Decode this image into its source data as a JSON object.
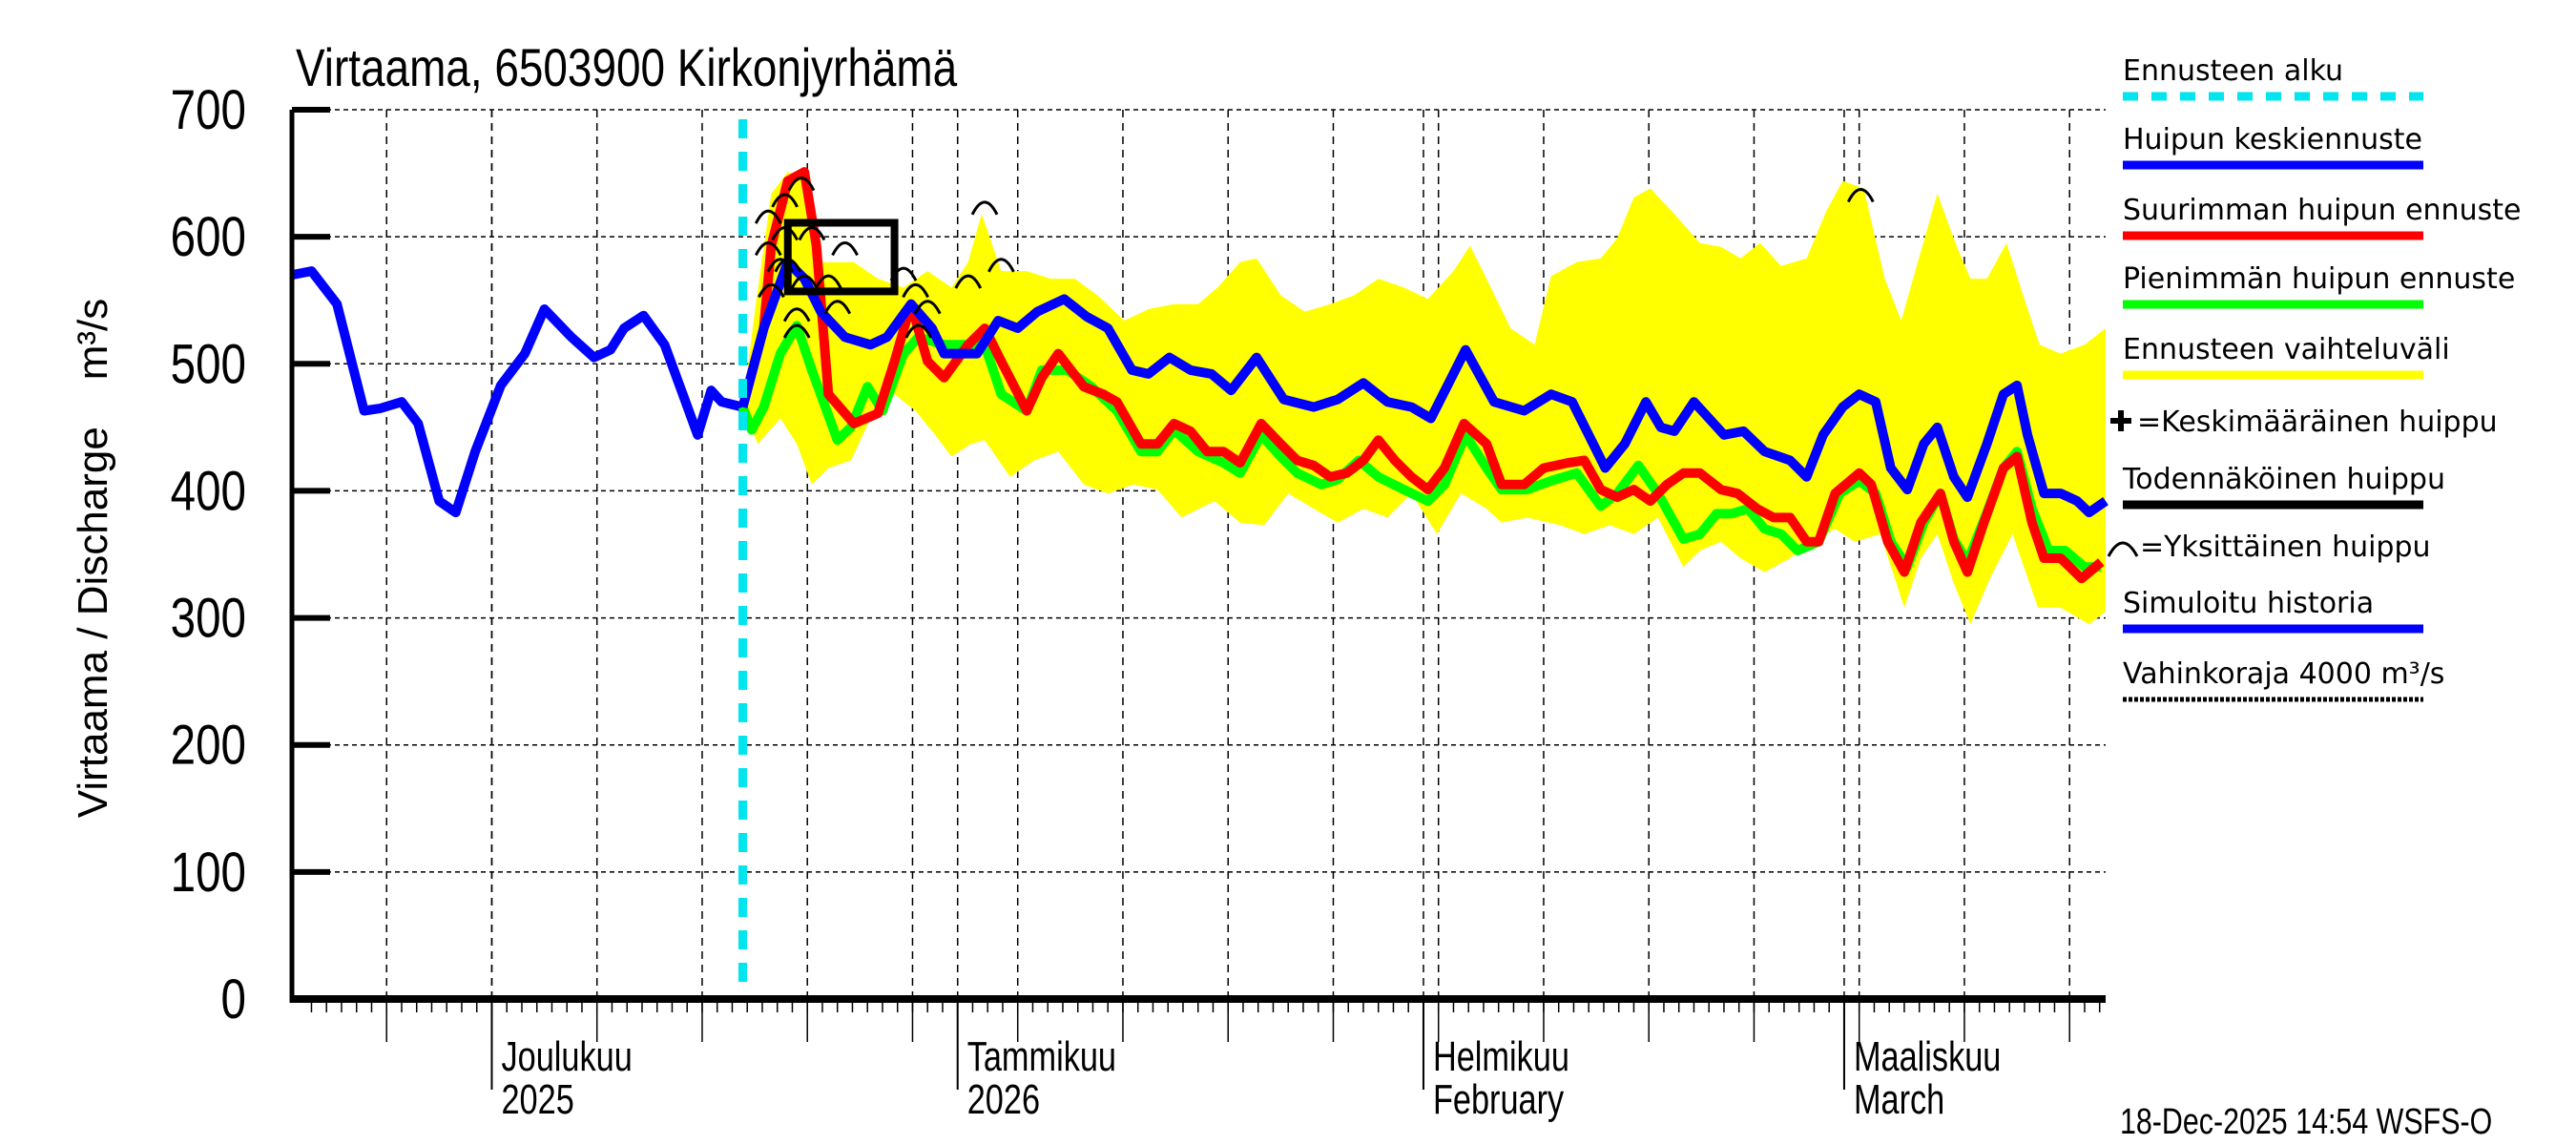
{
  "chart_data": {
    "type": "line",
    "title": "Virtaama, 6503900 Kirkonjyrhämä",
    "ylabel": "Virtaama / Discharge    m³/s",
    "ylim": [
      0,
      700
    ],
    "yticks": [
      0,
      100,
      200,
      300,
      400,
      500,
      600,
      700
    ],
    "x_unit": "days since 2025-11-18",
    "xlim": [
      0,
      120.7
    ],
    "month_starts": [
      13.3,
      44.3,
      75.3,
      103.3
    ],
    "month_labels": [
      {
        "day": 13.3,
        "line1": "Joulukuu",
        "line2": "2025"
      },
      {
        "day": 44.3,
        "line1": "Tammikuu",
        "line2": "2026"
      },
      {
        "day": 75.3,
        "line1": "Helmikuu",
        "line2": "February"
      },
      {
        "day": 103.3,
        "line1": "Maaliskuu",
        "line2": "March"
      }
    ],
    "forecast_start_day": 30,
    "timestamp": "18-Dec-2025 14:54 WSFS-O",
    "colors": {
      "history": "#0000ff",
      "mean": "#0000ff",
      "max": "#ff0000",
      "min": "#00ff00",
      "band": "#ffff00",
      "forecast_start": "#00e5ee",
      "probable": "#000000"
    },
    "history": [
      [
        0,
        570
      ],
      [
        1.3,
        573
      ],
      [
        3,
        547
      ],
      [
        4.8,
        463
      ],
      [
        5.9,
        465
      ],
      [
        7.3,
        470
      ],
      [
        8.4,
        453
      ],
      [
        9.8,
        392
      ],
      [
        10.9,
        383
      ],
      [
        12.2,
        431
      ],
      [
        13.9,
        483
      ],
      [
        15.5,
        508
      ],
      [
        16.8,
        543
      ],
      [
        18.6,
        521
      ],
      [
        20.1,
        505
      ],
      [
        21.2,
        511
      ],
      [
        22.1,
        528
      ],
      [
        23.4,
        538
      ],
      [
        24.8,
        515
      ],
      [
        26.2,
        470
      ],
      [
        27,
        444
      ],
      [
        27.9,
        479
      ],
      [
        28.6,
        470
      ],
      [
        30,
        466
      ]
    ],
    "mean_forecast": [
      [
        30,
        466
      ],
      [
        31.4,
        528
      ],
      [
        33,
        580
      ],
      [
        34.1,
        567
      ],
      [
        35.2,
        541
      ],
      [
        36.8,
        521
      ],
      [
        38.5,
        515
      ],
      [
        39.6,
        521
      ],
      [
        41.2,
        547
      ],
      [
        42.6,
        528
      ],
      [
        43.4,
        508
      ],
      [
        45.6,
        508
      ],
      [
        47,
        534
      ],
      [
        48.3,
        528
      ],
      [
        49.6,
        541
      ],
      [
        51.4,
        551
      ],
      [
        52.9,
        537
      ],
      [
        54.3,
        528
      ],
      [
        55.9,
        495
      ],
      [
        57,
        492
      ],
      [
        58.4,
        505
      ],
      [
        59.8,
        495
      ],
      [
        61.2,
        492
      ],
      [
        62.5,
        479
      ],
      [
        64.2,
        505
      ],
      [
        66,
        472
      ],
      [
        68,
        466
      ],
      [
        69.6,
        472
      ],
      [
        71.3,
        485
      ],
      [
        72.9,
        470
      ],
      [
        74.5,
        466
      ],
      [
        75.8,
        457
      ],
      [
        78.1,
        511
      ],
      [
        80,
        470
      ],
      [
        82,
        463
      ],
      [
        83.8,
        476
      ],
      [
        85.2,
        470
      ],
      [
        86.3,
        444
      ],
      [
        87.4,
        418
      ],
      [
        88.7,
        437
      ],
      [
        90.1,
        470
      ],
      [
        91.1,
        450
      ],
      [
        92,
        447
      ],
      [
        93.3,
        470
      ],
      [
        95.3,
        444
      ],
      [
        96.6,
        447
      ],
      [
        98,
        431
      ],
      [
        99.7,
        424
      ],
      [
        100.8,
        411
      ],
      [
        101.9,
        444
      ],
      [
        103.2,
        466
      ],
      [
        104.3,
        476
      ],
      [
        105.4,
        470
      ],
      [
        106.4,
        418
      ],
      [
        107.5,
        401
      ],
      [
        108.6,
        437
      ],
      [
        109.5,
        450
      ],
      [
        110.6,
        411
      ],
      [
        111.5,
        395
      ],
      [
        112.8,
        437
      ],
      [
        113.9,
        476
      ],
      [
        114.8,
        483
      ],
      [
        115.5,
        444
      ],
      [
        116.6,
        398
      ],
      [
        117.7,
        398
      ],
      [
        118.8,
        392
      ],
      [
        119.6,
        383
      ],
      [
        120.7,
        392
      ]
    ],
    "max_forecast": [
      [
        30,
        466
      ],
      [
        31.4,
        528
      ],
      [
        31.9,
        593
      ],
      [
        33,
        644
      ],
      [
        34.1,
        651
      ],
      [
        34.9,
        593
      ],
      [
        35.7,
        476
      ],
      [
        37.4,
        453
      ],
      [
        39,
        461
      ],
      [
        40.1,
        502
      ],
      [
        41.2,
        547
      ],
      [
        42.3,
        502
      ],
      [
        43.4,
        489
      ],
      [
        45,
        515
      ],
      [
        46.1,
        528
      ],
      [
        47.2,
        502
      ],
      [
        48.9,
        463
      ],
      [
        49.9,
        489
      ],
      [
        51,
        508
      ],
      [
        52.7,
        482
      ],
      [
        54,
        476
      ],
      [
        54.9,
        470
      ],
      [
        56.5,
        437
      ],
      [
        57.6,
        437
      ],
      [
        58.7,
        453
      ],
      [
        59.8,
        447
      ],
      [
        60.9,
        431
      ],
      [
        62,
        431
      ],
      [
        63.1,
        422
      ],
      [
        64.5,
        453
      ],
      [
        65.8,
        437
      ],
      [
        66.9,
        424
      ],
      [
        68,
        420
      ],
      [
        69.1,
        411
      ],
      [
        70.2,
        414
      ],
      [
        71.3,
        424
      ],
      [
        72.3,
        440
      ],
      [
        73.4,
        424
      ],
      [
        74.5,
        411
      ],
      [
        75.6,
        401
      ],
      [
        76.7,
        418
      ],
      [
        78,
        453
      ],
      [
        79.5,
        437
      ],
      [
        80.5,
        405
      ],
      [
        82,
        405
      ],
      [
        83.3,
        418
      ],
      [
        84.9,
        422
      ],
      [
        86,
        424
      ],
      [
        87.1,
        401
      ],
      [
        88.2,
        395
      ],
      [
        89.3,
        401
      ],
      [
        90.4,
        392
      ],
      [
        91.5,
        405
      ],
      [
        92.6,
        414
      ],
      [
        93.7,
        414
      ],
      [
        95.1,
        401
      ],
      [
        96.2,
        398
      ],
      [
        97.5,
        386
      ],
      [
        98.6,
        379
      ],
      [
        99.7,
        379
      ],
      [
        100.8,
        360
      ],
      [
        101.6,
        360
      ],
      [
        102.7,
        398
      ],
      [
        104.3,
        414
      ],
      [
        105.1,
        405
      ],
      [
        106.2,
        360
      ],
      [
        107.3,
        336
      ],
      [
        108.4,
        375
      ],
      [
        109.7,
        398
      ],
      [
        110.6,
        360
      ],
      [
        111.5,
        336
      ],
      [
        112.6,
        375
      ],
      [
        113.9,
        418
      ],
      [
        114.8,
        427
      ],
      [
        115.8,
        375
      ],
      [
        116.6,
        347
      ],
      [
        117.7,
        347
      ],
      [
        119.1,
        331
      ],
      [
        120.4,
        344
      ]
    ],
    "min_forecast": [
      [
        30,
        466
      ],
      [
        30.6,
        448
      ],
      [
        31.4,
        466
      ],
      [
        32.5,
        508
      ],
      [
        33.6,
        530
      ],
      [
        34.6,
        495
      ],
      [
        36.3,
        440
      ],
      [
        37.2,
        450
      ],
      [
        38.3,
        482
      ],
      [
        39.3,
        463
      ],
      [
        40.7,
        508
      ],
      [
        41.7,
        521
      ],
      [
        43.4,
        515
      ],
      [
        46.1,
        515
      ],
      [
        47.2,
        476
      ],
      [
        48.9,
        463
      ],
      [
        49.9,
        495
      ],
      [
        51.6,
        495
      ],
      [
        53.2,
        482
      ],
      [
        54.9,
        463
      ],
      [
        56.5,
        431
      ],
      [
        57.6,
        431
      ],
      [
        58.7,
        448
      ],
      [
        60.3,
        431
      ],
      [
        62,
        422
      ],
      [
        63.1,
        414
      ],
      [
        64.5,
        444
      ],
      [
        65.8,
        427
      ],
      [
        66.9,
        414
      ],
      [
        68.5,
        405
      ],
      [
        69.6,
        409
      ],
      [
        71,
        424
      ],
      [
        72.3,
        411
      ],
      [
        74,
        401
      ],
      [
        75.6,
        392
      ],
      [
        76.7,
        405
      ],
      [
        78.1,
        444
      ],
      [
        79.5,
        418
      ],
      [
        80.5,
        401
      ],
      [
        82.2,
        401
      ],
      [
        83.8,
        408
      ],
      [
        85.5,
        414
      ],
      [
        87.1,
        388
      ],
      [
        88.2,
        398
      ],
      [
        89.6,
        420
      ],
      [
        90.9,
        398
      ],
      [
        92.6,
        362
      ],
      [
        93.7,
        366
      ],
      [
        94.8,
        382
      ],
      [
        95.8,
        382
      ],
      [
        96.9,
        386
      ],
      [
        98,
        370
      ],
      [
        99.1,
        366
      ],
      [
        100.2,
        353
      ],
      [
        101.6,
        360
      ],
      [
        103,
        398
      ],
      [
        104.3,
        408
      ],
      [
        105.4,
        398
      ],
      [
        106.4,
        360
      ],
      [
        107.5,
        340
      ],
      [
        108.6,
        375
      ],
      [
        109.7,
        398
      ],
      [
        110.6,
        362
      ],
      [
        111.5,
        344
      ],
      [
        112.8,
        383
      ],
      [
        113.9,
        418
      ],
      [
        114.8,
        431
      ],
      [
        115.8,
        386
      ],
      [
        116.9,
        353
      ],
      [
        118,
        353
      ],
      [
        119.3,
        340
      ],
      [
        120.4,
        340
      ]
    ],
    "band_upper": [
      [
        30,
        466
      ],
      [
        30.8,
        541
      ],
      [
        31.9,
        634
      ],
      [
        33,
        651
      ],
      [
        34.3,
        646
      ],
      [
        35.2,
        580
      ],
      [
        37.4,
        580
      ],
      [
        39,
        567
      ],
      [
        40.7,
        560
      ],
      [
        42.3,
        573
      ],
      [
        43.9,
        560
      ],
      [
        45,
        580
      ],
      [
        45.9,
        618
      ],
      [
        47.2,
        573
      ],
      [
        48.9,
        573
      ],
      [
        50.5,
        567
      ],
      [
        52.1,
        567
      ],
      [
        53.6,
        554
      ],
      [
        55.4,
        534
      ],
      [
        57,
        543
      ],
      [
        58.7,
        547
      ],
      [
        60.3,
        547
      ],
      [
        61.6,
        560
      ],
      [
        63.1,
        580
      ],
      [
        64.2,
        583
      ],
      [
        65.8,
        554
      ],
      [
        67.4,
        541
      ],
      [
        69.1,
        547
      ],
      [
        70.7,
        554
      ],
      [
        72.3,
        567
      ],
      [
        74,
        560
      ],
      [
        75.6,
        551
      ],
      [
        77.3,
        573
      ],
      [
        78.4,
        593
      ],
      [
        79.5,
        567
      ],
      [
        81.1,
        528
      ],
      [
        82.7,
        515
      ],
      [
        83.8,
        569
      ],
      [
        85.5,
        580
      ],
      [
        87.1,
        583
      ],
      [
        88.2,
        599
      ],
      [
        89.3,
        631
      ],
      [
        90.4,
        638
      ],
      [
        92,
        618
      ],
      [
        93.7,
        595
      ],
      [
        95.1,
        592
      ],
      [
        96.4,
        583
      ],
      [
        97.7,
        595
      ],
      [
        99.1,
        577
      ],
      [
        100.8,
        583
      ],
      [
        102.1,
        620
      ],
      [
        103.2,
        644
      ],
      [
        104.6,
        638
      ],
      [
        106,
        567
      ],
      [
        107.1,
        534
      ],
      [
        108.2,
        580
      ],
      [
        109.5,
        634
      ],
      [
        110.8,
        592
      ],
      [
        111.7,
        567
      ],
      [
        112.8,
        567
      ],
      [
        114.1,
        595
      ],
      [
        115.2,
        554
      ],
      [
        116.3,
        515
      ],
      [
        117.7,
        508
      ],
      [
        119.3,
        515
      ],
      [
        120.7,
        528
      ]
    ],
    "band_lower": [
      [
        30,
        466
      ],
      [
        31,
        437
      ],
      [
        32.5,
        457
      ],
      [
        33.6,
        437
      ],
      [
        34.6,
        405
      ],
      [
        35.7,
        418
      ],
      [
        37.2,
        424
      ],
      [
        38.5,
        457
      ],
      [
        40.1,
        476
      ],
      [
        41.5,
        463
      ],
      [
        42.8,
        444
      ],
      [
        43.9,
        427
      ],
      [
        45.2,
        437
      ],
      [
        46.1,
        440
      ],
      [
        47.8,
        411
      ],
      [
        49.4,
        424
      ],
      [
        51,
        431
      ],
      [
        52.7,
        405
      ],
      [
        54.3,
        398
      ],
      [
        56,
        405
      ],
      [
        57.6,
        401
      ],
      [
        59.2,
        379
      ],
      [
        61.4,
        392
      ],
      [
        63.1,
        375
      ],
      [
        64.7,
        373
      ],
      [
        66.3,
        398
      ],
      [
        68,
        386
      ],
      [
        69.6,
        375
      ],
      [
        71.3,
        386
      ],
      [
        72.9,
        379
      ],
      [
        74.5,
        398
      ],
      [
        76.2,
        366
      ],
      [
        77.8,
        398
      ],
      [
        79.5,
        386
      ],
      [
        80.5,
        375
      ],
      [
        82.2,
        379
      ],
      [
        84.4,
        373
      ],
      [
        86,
        366
      ],
      [
        87.7,
        373
      ],
      [
        89.3,
        366
      ],
      [
        90.9,
        379
      ],
      [
        92.6,
        340
      ],
      [
        93.7,
        353
      ],
      [
        95.1,
        360
      ],
      [
        96.4,
        347
      ],
      [
        98,
        336
      ],
      [
        99.7,
        347
      ],
      [
        101.3,
        362
      ],
      [
        102.7,
        370
      ],
      [
        104,
        360
      ],
      [
        105.7,
        366
      ],
      [
        107.3,
        308
      ],
      [
        108.4,
        347
      ],
      [
        109.5,
        366
      ],
      [
        110.6,
        327
      ],
      [
        111.7,
        295
      ],
      [
        113,
        331
      ],
      [
        114.5,
        366
      ],
      [
        116.2,
        308
      ],
      [
        117.7,
        308
      ],
      [
        119.6,
        295
      ],
      [
        120.7,
        305
      ]
    ],
    "probable_peak_box": {
      "day_from": 33.0,
      "day_to": 40.1,
      "value_from": 557,
      "value_to": 611
    },
    "individual_peaks": [
      [
        31.7,
        618
      ],
      [
        32.8,
        631
      ],
      [
        33.9,
        644
      ],
      [
        32.8,
        605
      ],
      [
        31.7,
        593
      ],
      [
        33,
        580
      ],
      [
        34.1,
        567
      ],
      [
        31.9,
        560
      ],
      [
        33.6,
        541
      ],
      [
        33.6,
        528
      ],
      [
        32.5,
        580
      ],
      [
        34.6,
        605
      ],
      [
        35.7,
        567
      ],
      [
        36.8,
        593
      ],
      [
        36.3,
        547
      ],
      [
        40.7,
        573
      ],
      [
        41.5,
        560
      ],
      [
        42.3,
        547
      ],
      [
        41.7,
        528
      ],
      [
        45,
        567
      ],
      [
        46.1,
        625
      ],
      [
        47.2,
        580
      ],
      [
        104.4,
        635
      ]
    ],
    "legend": [
      {
        "label": "Ennusteen alku",
        "style": "dash",
        "color": "#00e5ee"
      },
      {
        "label": "Huipun keskiennuste",
        "style": "line",
        "color": "#0000ff"
      },
      {
        "label": "Suurimman huipun ennuste",
        "style": "line",
        "color": "#ff0000"
      },
      {
        "label": "Pienimmän huipun ennuste",
        "style": "line",
        "color": "#00ff00"
      },
      {
        "label": "Ennusteen vaihteluväli",
        "style": "line",
        "color": "#ffff00"
      },
      {
        "label": "=Keskimääräinen huippu",
        "style": "plus",
        "color": "#000000"
      },
      {
        "label": "Todennäköinen huippu",
        "style": "line",
        "color": "#000000"
      },
      {
        "label": "=Yksittäinen huippu",
        "style": "arc",
        "color": "#000000"
      },
      {
        "label": "Simuloitu historia",
        "style": "line",
        "color": "#0000ff"
      },
      {
        "label": "Vahinkoraja 4000 m³/s",
        "style": "dotted",
        "color": "#000000"
      }
    ]
  }
}
